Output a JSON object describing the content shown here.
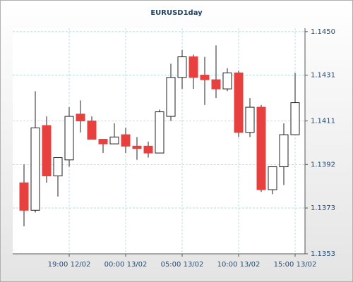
{
  "chart_data": {
    "type": "candlestick",
    "title": "EURUSD1day",
    "categories": [
      null,
      null,
      null,
      null,
      "19:00 12/02",
      null,
      null,
      null,
      null,
      "00:00 13/02",
      null,
      null,
      null,
      null,
      "05:00 13/02",
      null,
      null,
      null,
      null,
      "10:00 13/02",
      null,
      null,
      null,
      null,
      "15:00 13/02"
    ],
    "open": [
      1.1384,
      1.1372,
      1.1409,
      1.1387,
      1.1394,
      1.1414,
      1.1411,
      1.1403,
      1.1401,
      1.1405,
      1.14,
      1.14,
      1.1397,
      1.1413,
      1.143,
      1.1439,
      1.1431,
      1.1429,
      1.1425,
      1.1432,
      1.1406,
      1.1417,
      1.1381,
      1.1391,
      1.1405
    ],
    "high": [
      1.1392,
      1.1424,
      1.1413,
      1.1395,
      1.1417,
      1.142,
      1.1413,
      1.1403,
      1.141,
      1.1408,
      1.1404,
      1.1402,
      1.1416,
      1.1436,
      1.1442,
      1.144,
      1.1439,
      1.1444,
      1.1434,
      1.1433,
      1.1421,
      1.1418,
      1.1391,
      1.141,
      1.1432
    ],
    "low": [
      1.1365,
      1.1371,
      1.1384,
      1.1378,
      1.1391,
      1.1406,
      1.1403,
      1.1397,
      1.1401,
      1.1397,
      1.1394,
      1.1395,
      1.1397,
      1.1411,
      1.1425,
      1.1425,
      1.1418,
      1.1421,
      1.1424,
      1.1404,
      1.1404,
      1.138,
      1.1379,
      1.1383,
      1.1405
    ],
    "close": [
      1.1372,
      1.1408,
      1.1387,
      1.1395,
      1.1413,
      1.1411,
      1.1403,
      1.1401,
      1.1404,
      1.14,
      1.1399,
      1.1397,
      1.1415,
      1.143,
      1.1439,
      1.143,
      1.1429,
      1.1425,
      1.1432,
      1.1406,
      1.1417,
      1.1381,
      1.1391,
      1.1405,
      1.1419
    ],
    "up_color": "#ffffff",
    "down_color": "#e8403f",
    "ylim": [
      1.1353,
      1.14515
    ],
    "yticks": [
      {
        "value": 1.1353,
        "label": "1.1353"
      },
      {
        "value": 1.1373,
        "label": "1.1373"
      },
      {
        "value": 1.1392,
        "label": "1.1392"
      },
      {
        "value": 1.1411,
        "label": "1.1411"
      },
      {
        "value": 1.1431,
        "label": "1.1431"
      },
      {
        "value": 1.145,
        "label": "1.1450"
      }
    ],
    "grid": true
  }
}
